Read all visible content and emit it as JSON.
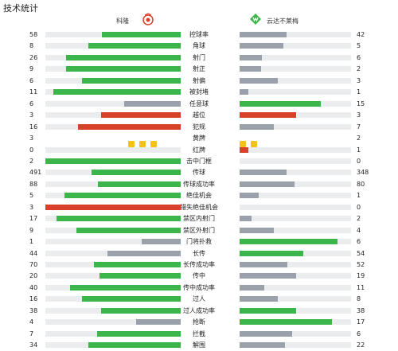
{
  "page": {
    "title": "技术统计"
  },
  "teams": {
    "home": {
      "name": "科隆"
    },
    "away": {
      "name": "云达不莱梅"
    }
  },
  "colors": {
    "green": "#3cb64a",
    "red": "#d8402a",
    "gray": "#9aa1ab",
    "yellow": "#f2c21b",
    "track": "#eaecee"
  },
  "stats": [
    {
      "label": "控球率",
      "home": "58",
      "away": "42",
      "home_pct": 58,
      "away_pct": 42,
      "home_color": "green",
      "away_color": "gray"
    },
    {
      "label": "角球",
      "home": "8",
      "away": "5",
      "home_pct": 68,
      "away_pct": 39,
      "home_color": "green",
      "away_color": "gray"
    },
    {
      "label": "射门",
      "home": "26",
      "away": "6",
      "home_pct": 85,
      "away_pct": 20,
      "home_color": "green",
      "away_color": "gray"
    },
    {
      "label": "射正",
      "home": "9",
      "away": "2",
      "home_pct": 85,
      "away_pct": 19,
      "home_color": "green",
      "away_color": "gray"
    },
    {
      "label": "射偏",
      "home": "6",
      "away": "3",
      "home_pct": 73,
      "away_pct": 34,
      "home_color": "green",
      "away_color": "gray"
    },
    {
      "label": "被封堵",
      "home": "11",
      "away": "1",
      "home_pct": 94,
      "away_pct": 8,
      "home_color": "green",
      "away_color": "gray"
    },
    {
      "label": "任意球",
      "home": "6",
      "away": "15",
      "home_pct": 42,
      "away_pct": 73,
      "home_color": "gray",
      "away_color": "green"
    },
    {
      "label": "越位",
      "home": "3",
      "away": "3",
      "home_pct": 59,
      "away_pct": 51,
      "home_color": "red",
      "away_color": "red"
    },
    {
      "label": "犯规",
      "home": "16",
      "away": "7",
      "home_pct": 76,
      "away_pct": 31,
      "home_color": "red",
      "away_color": "gray"
    },
    {
      "label": "黄牌",
      "home": "3",
      "away": "2",
      "home_cards": 3,
      "away_cards": 2,
      "type": "cards"
    },
    {
      "label": "红牌",
      "home": "0",
      "away": "1",
      "home_pct": 0,
      "away_pct": 8,
      "home_color": "red",
      "away_color": "red"
    },
    {
      "label": "击中门框",
      "home": "2",
      "away": "0",
      "home_pct": 100,
      "away_pct": 0,
      "home_color": "green",
      "away_color": "gray"
    },
    {
      "label": "传球",
      "home": "491",
      "away": "348",
      "home_pct": 66,
      "away_pct": 42,
      "home_color": "green",
      "away_color": "gray"
    },
    {
      "label": "传球成功率",
      "home": "88",
      "away": "80",
      "home_pct": 61,
      "away_pct": 49,
      "home_color": "green",
      "away_color": "gray"
    },
    {
      "label": "绝佳机会",
      "home": "5",
      "away": "1",
      "home_pct": 86,
      "away_pct": 17,
      "home_color": "green",
      "away_color": "gray"
    },
    {
      "label": "错失绝佳机会",
      "home": "3",
      "away": "0",
      "home_pct": 100,
      "away_pct": 0,
      "home_color": "red",
      "away_color": "gray"
    },
    {
      "label": "禁区内射门",
      "home": "17",
      "away": "2",
      "home_pct": 92,
      "away_pct": 11,
      "home_color": "green",
      "away_color": "gray"
    },
    {
      "label": "禁区外射门",
      "home": "9",
      "away": "4",
      "home_pct": 77,
      "away_pct": 31,
      "home_color": "green",
      "away_color": "gray"
    },
    {
      "label": "门将扑救",
      "home": "1",
      "away": "6",
      "home_pct": 29,
      "away_pct": 88,
      "home_color": "gray",
      "away_color": "green"
    },
    {
      "label": "长传",
      "home": "44",
      "away": "54",
      "home_pct": 54,
      "away_pct": 57,
      "home_color": "gray",
      "away_color": "green"
    },
    {
      "label": "长传成功率",
      "home": "70",
      "away": "52",
      "home_pct": 64,
      "away_pct": 43,
      "home_color": "green",
      "away_color": "gray"
    },
    {
      "label": "传中",
      "home": "20",
      "away": "19",
      "home_pct": 60,
      "away_pct": 51,
      "home_color": "green",
      "away_color": "gray"
    },
    {
      "label": "传中成功率",
      "home": "40",
      "away": "11",
      "home_pct": 82,
      "away_pct": 22,
      "home_color": "green",
      "away_color": "gray"
    },
    {
      "label": "过人",
      "home": "16",
      "away": "8",
      "home_pct": 73,
      "away_pct": 34,
      "home_color": "green",
      "away_color": "gray"
    },
    {
      "label": "过人成功率",
      "home": "38",
      "away": "38",
      "home_pct": 59,
      "away_pct": 51,
      "home_color": "green",
      "away_color": "green"
    },
    {
      "label": "抢断",
      "home": "4",
      "away": "17",
      "home_pct": 33,
      "away_pct": 83,
      "home_color": "gray",
      "away_color": "green"
    },
    {
      "label": "拦截",
      "home": "7",
      "away": "6",
      "home_pct": 62,
      "away_pct": 47,
      "home_color": "green",
      "away_color": "gray"
    },
    {
      "label": "解围",
      "home": "34",
      "away": "22",
      "home_pct": 68,
      "away_pct": 41,
      "home_color": "green",
      "away_color": "gray"
    }
  ]
}
